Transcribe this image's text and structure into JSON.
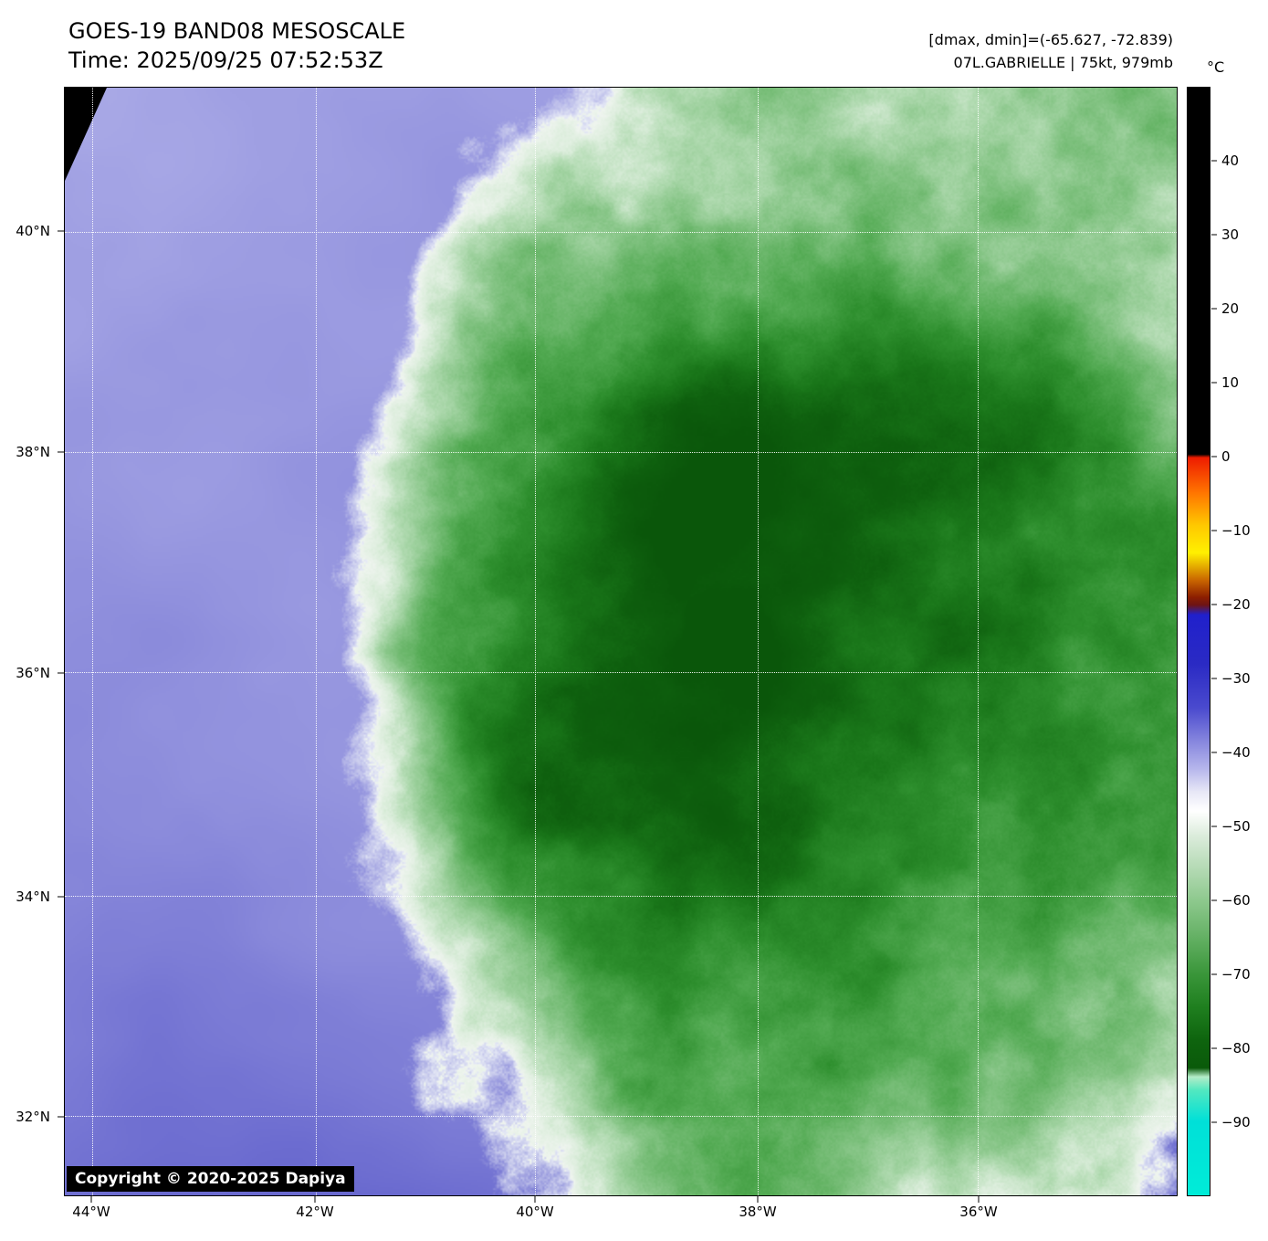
{
  "header": {
    "title": "GOES-19 BAND08 MESOSCALE",
    "time": "Time: 2025/09/25 07:52:53Z",
    "stats": "[dmax, dmin]=(-65.627, -72.839)",
    "storm": "07L.GABRIELLE | 75kt, 979mb"
  },
  "map": {
    "copyright": "Copyright © 2020-2025 Dapiya",
    "lat_ticks": [
      {
        "label": "40°N",
        "pct": 13.0
      },
      {
        "label": "38°N",
        "pct": 32.9
      },
      {
        "label": "36°N",
        "pct": 52.8
      },
      {
        "label": "34°N",
        "pct": 73.0
      },
      {
        "label": "32°N",
        "pct": 92.8
      }
    ],
    "lon_ticks": [
      {
        "label": "44°W",
        "pct": 2.46
      },
      {
        "label": "42°W",
        "pct": 22.54
      },
      {
        "label": "40°W",
        "pct": 42.3
      },
      {
        "label": "38°W",
        "pct": 62.3
      },
      {
        "label": "36°W",
        "pct": 82.13
      }
    ]
  },
  "colorbar": {
    "unit": "°C",
    "ticks": [
      {
        "label": "40",
        "pct": 6.67
      },
      {
        "label": "30",
        "pct": 13.33
      },
      {
        "label": "20",
        "pct": 20.0
      },
      {
        "label": "10",
        "pct": 26.67
      },
      {
        "label": "0",
        "pct": 33.33
      },
      {
        "label": "−10",
        "pct": 40.0
      },
      {
        "label": "−20",
        "pct": 46.67
      },
      {
        "label": "−30",
        "pct": 53.33
      },
      {
        "label": "−40",
        "pct": 60.0
      },
      {
        "label": "−50",
        "pct": 66.67
      },
      {
        "label": "−60",
        "pct": 73.33
      },
      {
        "label": "−70",
        "pct": 80.0
      },
      {
        "label": "−80",
        "pct": 86.67
      },
      {
        "label": "−90",
        "pct": 93.33
      }
    ],
    "gradient_stops": [
      {
        "pct": 0,
        "color": "#000000"
      },
      {
        "pct": 33.1,
        "color": "#000000"
      },
      {
        "pct": 33.4,
        "color": "#ee1c00"
      },
      {
        "pct": 36.5,
        "color": "#ff7300"
      },
      {
        "pct": 39.5,
        "color": "#ffc800"
      },
      {
        "pct": 42.0,
        "color": "#fff000"
      },
      {
        "pct": 44.5,
        "color": "#c86400"
      },
      {
        "pct": 46.0,
        "color": "#8c1e00"
      },
      {
        "pct": 46.7,
        "color": "#6e1414"
      },
      {
        "pct": 47.6,
        "color": "#2020cc"
      },
      {
        "pct": 52.0,
        "color": "#2a2ac4"
      },
      {
        "pct": 56.0,
        "color": "#4a4ace"
      },
      {
        "pct": 59.0,
        "color": "#8686de"
      },
      {
        "pct": 61.5,
        "color": "#b6b6ec"
      },
      {
        "pct": 63.5,
        "color": "#e6e6f6"
      },
      {
        "pct": 65.3,
        "color": "#ffffff"
      },
      {
        "pct": 67.5,
        "color": "#dcecdc"
      },
      {
        "pct": 70.5,
        "color": "#b4dab4"
      },
      {
        "pct": 73.5,
        "color": "#8cc88c"
      },
      {
        "pct": 77.0,
        "color": "#60ae60"
      },
      {
        "pct": 80.0,
        "color": "#3a963a"
      },
      {
        "pct": 83.0,
        "color": "#1f7f1f"
      },
      {
        "pct": 86.0,
        "color": "#0e640e"
      },
      {
        "pct": 88.5,
        "color": "#0a5a0a"
      },
      {
        "pct": 89.3,
        "color": "#b4ecc8"
      },
      {
        "pct": 90.5,
        "color": "#52e8c0"
      },
      {
        "pct": 93.3,
        "color": "#00e0d8"
      },
      {
        "pct": 100,
        "color": "#00ecd8"
      }
    ]
  },
  "satellite": {
    "dry_light": "#b4b4ea",
    "dry_dark": "#6262cc",
    "dry_wash": "#eef2f8",
    "field_stops": [
      {
        "t": 0.0,
        "c": "#f0f5f0"
      },
      {
        "t": 0.07,
        "c": "#ddeedd"
      },
      {
        "t": 0.16,
        "c": "#b4dcb4"
      },
      {
        "t": 0.28,
        "c": "#84c484"
      },
      {
        "t": 0.42,
        "c": "#52aa52"
      },
      {
        "t": 0.56,
        "c": "#2e8f2e"
      },
      {
        "t": 0.7,
        "c": "#1a771a"
      },
      {
        "t": 0.85,
        "c": "#0e5f0e"
      },
      {
        "t": 1.0,
        "c": "#0a560a"
      }
    ]
  }
}
